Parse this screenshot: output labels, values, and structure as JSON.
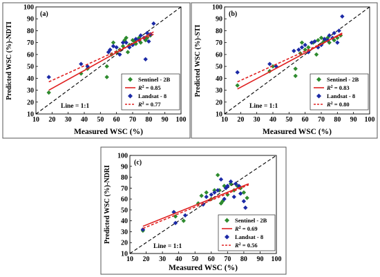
{
  "colors": {
    "sentinel": "#2e8b2e",
    "landsat": "#1c2aa6",
    "sentinel_fit": "#e02020",
    "landsat_fit": "#e02020",
    "one_to_one": "#000000",
    "frame": "#555555"
  },
  "chart_data": [
    {
      "type": "scatter",
      "panel_label": "(a)",
      "xlabel": "Measured WSC (%)",
      "ylabel": "Predicted WSC (%)-NDTI",
      "xlim": [
        10,
        100
      ],
      "ylim": [
        10,
        100
      ],
      "xticks": [
        "10",
        "20",
        "30",
        "40",
        "50",
        "60",
        "70",
        "80",
        "90",
        "100"
      ],
      "yticks": [
        "10",
        "20",
        "30",
        "40",
        "50",
        "60",
        "70",
        "80",
        "90",
        "100"
      ],
      "grid": false,
      "legend_placement": "bottom-right",
      "line_note": "Line = 1:1",
      "legend": {
        "s1": "Sentinel - 2B",
        "r1": "0.85",
        "s2": "Landsat - 8",
        "r2": "0.77"
      },
      "series": [
        {
          "name": "Sentinel - 2B",
          "x": [
            18,
            38,
            42,
            54,
            54,
            57,
            58,
            60,
            62,
            64,
            65,
            66,
            67,
            68,
            70,
            71,
            72,
            74,
            75,
            78,
            79,
            81
          ],
          "y": [
            28,
            44,
            48,
            50,
            41,
            60,
            70,
            62,
            64,
            67,
            72,
            74,
            62,
            68,
            72,
            71,
            69,
            74,
            70,
            72,
            74,
            76
          ]
        },
        {
          "name": "Landsat - 8",
          "x": [
            18,
            38,
            42,
            55,
            56,
            58,
            60,
            62,
            64,
            66,
            68,
            70,
            72,
            74,
            75,
            77,
            78,
            79,
            80,
            81,
            83
          ],
          "y": [
            41,
            52,
            50,
            62,
            64,
            67,
            66,
            60,
            70,
            70,
            66,
            68,
            73,
            72,
            76,
            74,
            56,
            78,
            71,
            77,
            86
          ]
        }
      ],
      "fits": [
        {
          "series": "Sentinel - 2B",
          "x": [
            18,
            83
          ],
          "y": [
            30,
            79
          ]
        },
        {
          "series": "Landsat - 8",
          "x": [
            18,
            83
          ],
          "y": [
            37,
            77
          ]
        }
      ]
    },
    {
      "type": "scatter",
      "panel_label": "(b)",
      "xlabel": "Measured WSC (%)",
      "ylabel": "Predicted WSC (%)-STI",
      "xlim": [
        10,
        100
      ],
      "ylim": [
        10,
        100
      ],
      "xticks": [
        "10",
        "20",
        "30",
        "40",
        "50",
        "60",
        "70",
        "80",
        "90",
        "100"
      ],
      "yticks": [
        "10",
        "20",
        "30",
        "40",
        "50",
        "60",
        "70",
        "80",
        "90",
        "100"
      ],
      "grid": false,
      "legend_placement": "bottom-right",
      "line_note": "Line = 1:1",
      "legend": {
        "s1": "Sentinel - 2B",
        "r1": "0.83",
        "s2": "Landsat - 8",
        "r2": "0.80"
      },
      "series": [
        {
          "name": "Sentinel - 2B",
          "x": [
            18,
            38,
            40,
            54,
            54,
            57,
            58,
            60,
            62,
            65,
            67,
            68,
            70,
            71,
            72,
            74,
            75,
            78,
            80,
            82
          ],
          "y": [
            34,
            46,
            50,
            48,
            42,
            61,
            70,
            64,
            66,
            70,
            60,
            72,
            74,
            70,
            72,
            74,
            70,
            72,
            74,
            76
          ]
        },
        {
          "name": "Landsat - 8",
          "x": [
            18,
            38,
            42,
            53,
            56,
            58,
            60,
            62,
            64,
            66,
            68,
            70,
            72,
            74,
            75,
            77,
            78,
            80,
            81,
            83
          ],
          "y": [
            45,
            52,
            50,
            63,
            64,
            66,
            68,
            62,
            70,
            71,
            66,
            68,
            73,
            72,
            76,
            74,
            78,
            70,
            80,
            92
          ]
        }
      ],
      "fits": [
        {
          "series": "Sentinel - 2B",
          "x": [
            18,
            83
          ],
          "y": [
            31,
            78
          ]
        },
        {
          "series": "Landsat - 8",
          "x": [
            18,
            83
          ],
          "y": [
            37,
            77
          ]
        }
      ]
    },
    {
      "type": "scatter",
      "panel_label": "(c)",
      "xlabel": "Measured WSC (%)",
      "ylabel": "Predicted WSC (%)-NDRI",
      "xlim": [
        10,
        100
      ],
      "ylim": [
        10,
        100
      ],
      "xticks": [
        "10",
        "20",
        "30",
        "40",
        "50",
        "60",
        "70",
        "80",
        "90",
        "100"
      ],
      "yticks": [
        "10",
        "20",
        "30",
        "40",
        "50",
        "60",
        "70",
        "80",
        "90",
        "100"
      ],
      "grid": false,
      "legend_placement": "bottom-right",
      "line_note": "Line = 1:1",
      "legend": {
        "s1": "Sentinel - 2B",
        "r1": "0.69",
        "s2": "Landsat - 8",
        "r2": "0.56"
      },
      "series": [
        {
          "name": "Sentinel - 2B",
          "x": [
            18,
            37,
            38,
            43,
            52,
            54,
            57,
            60,
            62,
            64,
            65,
            66,
            67,
            68,
            70,
            72,
            74,
            76,
            78,
            80,
            82
          ],
          "y": [
            31,
            48,
            44,
            40,
            56,
            63,
            66,
            60,
            68,
            82,
            68,
            56,
            58,
            72,
            64,
            74,
            68,
            72,
            70,
            66,
            61
          ]
        },
        {
          "name": "Landsat - 8",
          "x": [
            18,
            37,
            38,
            44,
            55,
            57,
            60,
            62,
            64,
            66,
            68,
            69,
            70,
            72,
            74,
            75,
            77,
            78,
            80,
            81
          ],
          "y": [
            32,
            48,
            38,
            45,
            55,
            62,
            64,
            66,
            68,
            78,
            60,
            70,
            72,
            76,
            62,
            74,
            72,
            65,
            58,
            52
          ]
        }
      ],
      "fits": [
        {
          "series": "Sentinel - 2B",
          "x": [
            18,
            83
          ],
          "y": [
            35,
            74
          ]
        },
        {
          "series": "Landsat - 8",
          "x": [
            18,
            83
          ],
          "y": [
            33,
            73
          ]
        }
      ]
    }
  ]
}
